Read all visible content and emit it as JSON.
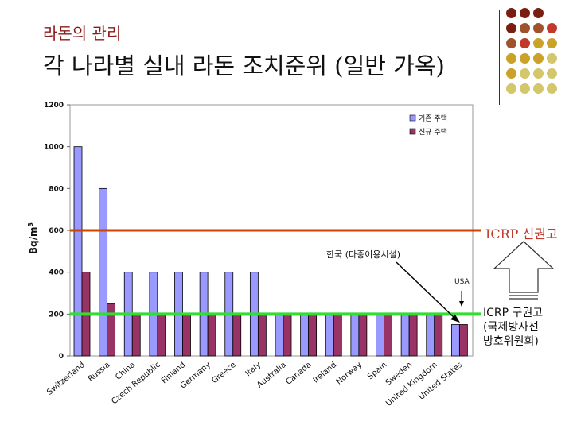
{
  "slide": {
    "subtitle": "라돈의 관리",
    "title": "각 나라별 실내 라돈 조치준위 (일반 가옥)"
  },
  "annotations": {
    "icrp_new": "ICRP 신권고",
    "icrp_old_lines": [
      "ICRP 구권고",
      "(국제방사선",
      "방호위원회)"
    ],
    "korea": "한국 (다중이용시설)",
    "usa": "USA"
  },
  "colors": {
    "existing": "#9999ff",
    "new": "#993366",
    "icrp_new_line": "#cc4400",
    "icrp_old_line": "#33dd33",
    "deco_dots": [
      "#7b1e12",
      "#a0522d",
      "#c0392b",
      "#c9a227",
      "#d4c66a"
    ]
  },
  "chart_data": {
    "type": "bar",
    "ylabel": "Bq/m3",
    "ylim": [
      0,
      1200
    ],
    "yticks": [
      0,
      200,
      400,
      600,
      800,
      1000,
      1200
    ],
    "legend_position": "top-right",
    "categories": [
      "Switzerland",
      "Russia",
      "China",
      "Czech Republic",
      "Finland",
      "Germany",
      "Greece",
      "Italy",
      "Australia",
      "Canada",
      "Ireland",
      "Norway",
      "Spain",
      "Sweden",
      "United Kingdom",
      "United States"
    ],
    "series": [
      {
        "name": "기존 주택",
        "values": [
          1000,
          800,
          400,
          400,
          400,
          400,
          400,
          400,
          200,
          200,
          200,
          200,
          200,
          200,
          200,
          150
        ]
      },
      {
        "name": "신규 주택",
        "values": [
          400,
          250,
          200,
          200,
          200,
          200,
          200,
          200,
          200,
          200,
          200,
          200,
          200,
          200,
          200,
          150
        ]
      }
    ],
    "reference_lines": [
      {
        "label": "ICRP 신권고",
        "value": 600
      },
      {
        "label": "ICRP 구권고",
        "value": 200
      }
    ]
  }
}
